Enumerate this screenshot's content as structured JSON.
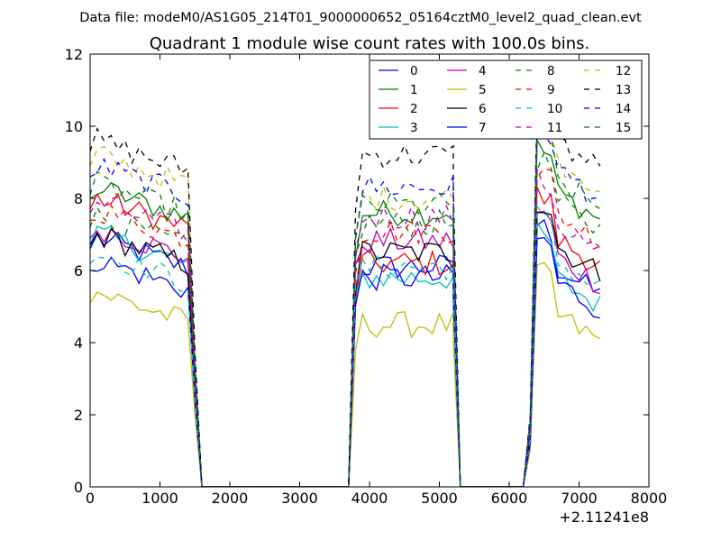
{
  "suptitle": "Data file: modeM0/AS1G05_214T01_9000000652_05164cztM0_level2_quad_clean.evt",
  "chart_data": {
    "type": "line",
    "title": "Quadrant 1 module wise count rates with 100.0s bins.",
    "xlabel": "",
    "ylabel": "",
    "x_offset_label": "+2.11241e8",
    "xlim": [
      0,
      8000
    ],
    "ylim": [
      0,
      12
    ],
    "xticks": [
      0,
      1000,
      2000,
      3000,
      4000,
      5000,
      6000,
      7000,
      8000
    ],
    "yticks": [
      0,
      2,
      4,
      6,
      8,
      10,
      12
    ],
    "grid": false,
    "legend": {
      "placement": "top-right",
      "columns": 4
    },
    "segments": [
      {
        "x_start": 100,
        "x_step": 100,
        "n": 14,
        "drop_at": 1500,
        "zero_at": 1600
      },
      {
        "x_start": 3800,
        "x_step": 100,
        "n": 15,
        "rise_from": 3700,
        "drop_at": 5200,
        "zero_at": 5300
      },
      {
        "x_start": 6400,
        "x_step": 100,
        "n": 10,
        "rise_from": 6200,
        "mid_at": 6300
      }
    ],
    "series": [
      {
        "name": "0",
        "color": "#0000ff",
        "dash": "solid",
        "level": [
          6.3,
          6.1,
          6.4
        ]
      },
      {
        "name": "1",
        "color": "#008000",
        "dash": "solid",
        "level": [
          7.7,
          7.6,
          8.5
        ]
      },
      {
        "name": "2",
        "color": "#ff0000",
        "dash": "solid",
        "level": [
          7.4,
          6.2,
          7.2
        ]
      },
      {
        "name": "3",
        "color": "#00bfbf",
        "dash": "solid",
        "level": [
          6.4,
          5.8,
          6.1
        ]
      },
      {
        "name": "4",
        "color": "#bf00bf",
        "dash": "solid",
        "level": [
          6.6,
          6.8,
          6.7
        ]
      },
      {
        "name": "5",
        "color": "#bfbf00",
        "dash": "solid",
        "level": [
          4.8,
          4.5,
          5.1
        ]
      },
      {
        "name": "6",
        "color": "#000000",
        "dash": "solid",
        "level": [
          6.4,
          6.5,
          7.0
        ]
      },
      {
        "name": "7",
        "color": "#0000ff",
        "dash": "solid",
        "level": [
          5.7,
          5.8,
          6.0
        ]
      },
      {
        "name": "8",
        "color": "#008000",
        "dash": "dashed",
        "level": [
          6.9,
          7.3,
          8.2
        ]
      },
      {
        "name": "9",
        "color": "#ff0000",
        "dash": "dashed",
        "level": [
          7.1,
          7.1,
          7.9
        ]
      },
      {
        "name": "10",
        "color": "#00bfbf",
        "dash": "dashed",
        "level": [
          5.9,
          6.1,
          6.6
        ]
      },
      {
        "name": "11",
        "color": "#bf00bf",
        "dash": "dashed",
        "level": [
          7.3,
          7.5,
          7.6
        ]
      },
      {
        "name": "12",
        "color": "#bfbf00",
        "dash": "dashed",
        "level": [
          8.6,
          8.0,
          9.4
        ]
      },
      {
        "name": "13",
        "color": "#000000",
        "dash": "dashed",
        "level": [
          9.0,
          9.2,
          9.9
        ]
      },
      {
        "name": "14",
        "color": "#0000ff",
        "dash": "dashed",
        "level": [
          8.3,
          8.3,
          9.1
        ]
      },
      {
        "name": "15",
        "color": "#008000",
        "dash": "dashed",
        "level": [
          7.8,
          7.8,
          8.8
        ]
      }
    ]
  }
}
